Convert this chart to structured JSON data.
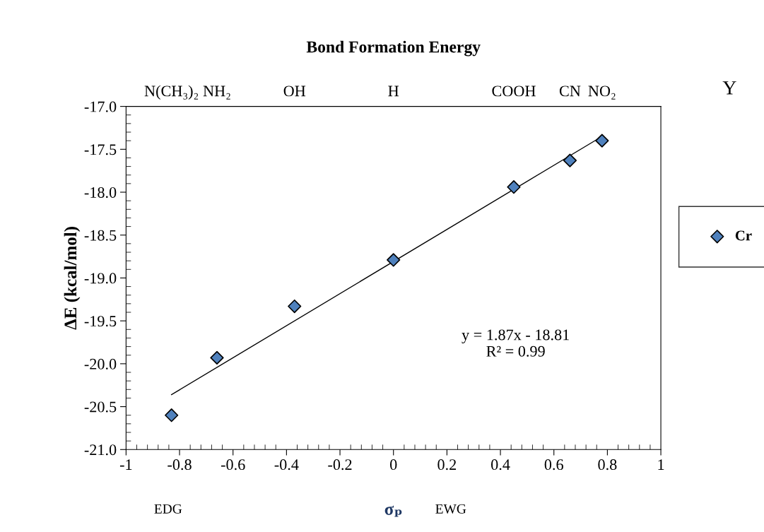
{
  "chart_data": {
    "type": "scatter",
    "title": "Bond Formation Energy",
    "xlabel": "σₚ",
    "ylabel": "ΔE (kcal/mol)",
    "x2label": "Y",
    "x": [
      -0.83,
      -0.66,
      -0.37,
      0,
      0.45,
      0.66,
      0.78
    ],
    "series": [
      {
        "name": "Cr",
        "color": "#4f81bd",
        "marker": "diamond",
        "values": [
          -20.6,
          -19.93,
          -19.33,
          -18.79,
          -17.94,
          -17.63,
          -17.4
        ]
      },
      {
        "type": "line",
        "color": "#000000",
        "x": [
          -0.83,
          0.78
        ],
        "values": [
          -20.36,
          -17.35
        ],
        "marker": "none",
        "line_style": "solid"
      }
    ],
    "xlim": [
      -1,
      1
    ],
    "xticks": [
      -1,
      -0.8,
      -0.6,
      -0.4,
      -0.2,
      0,
      0.2,
      0.4,
      0.6,
      0.8,
      1
    ],
    "ylim": [
      -21,
      -17
    ],
    "yticks": [
      {
        "value": -21,
        "label": "-21.0"
      },
      {
        "value": -20.5,
        "label": "-20.5"
      },
      {
        "value": -20,
        "label": "-20.0"
      },
      {
        "value": -19.5,
        "label": "-19.5"
      },
      {
        "value": -19,
        "label": "-19.0"
      },
      {
        "value": -18.5,
        "label": "-18.5"
      },
      {
        "value": -18,
        "label": "-18.0"
      },
      {
        "value": -17.5,
        "label": "-17.5"
      },
      {
        "value": -17,
        "label": "-17.0"
      }
    ],
    "annotations": [
      "EDG",
      "EWG",
      "y = 1.87x - 18.81\nR² = 0.99",
      "N(CH₃)₂",
      "NH₂",
      "OH",
      "H",
      "COOH",
      "CN",
      "NO₂"
    ],
    "grid": false,
    "legend": "right"
  }
}
